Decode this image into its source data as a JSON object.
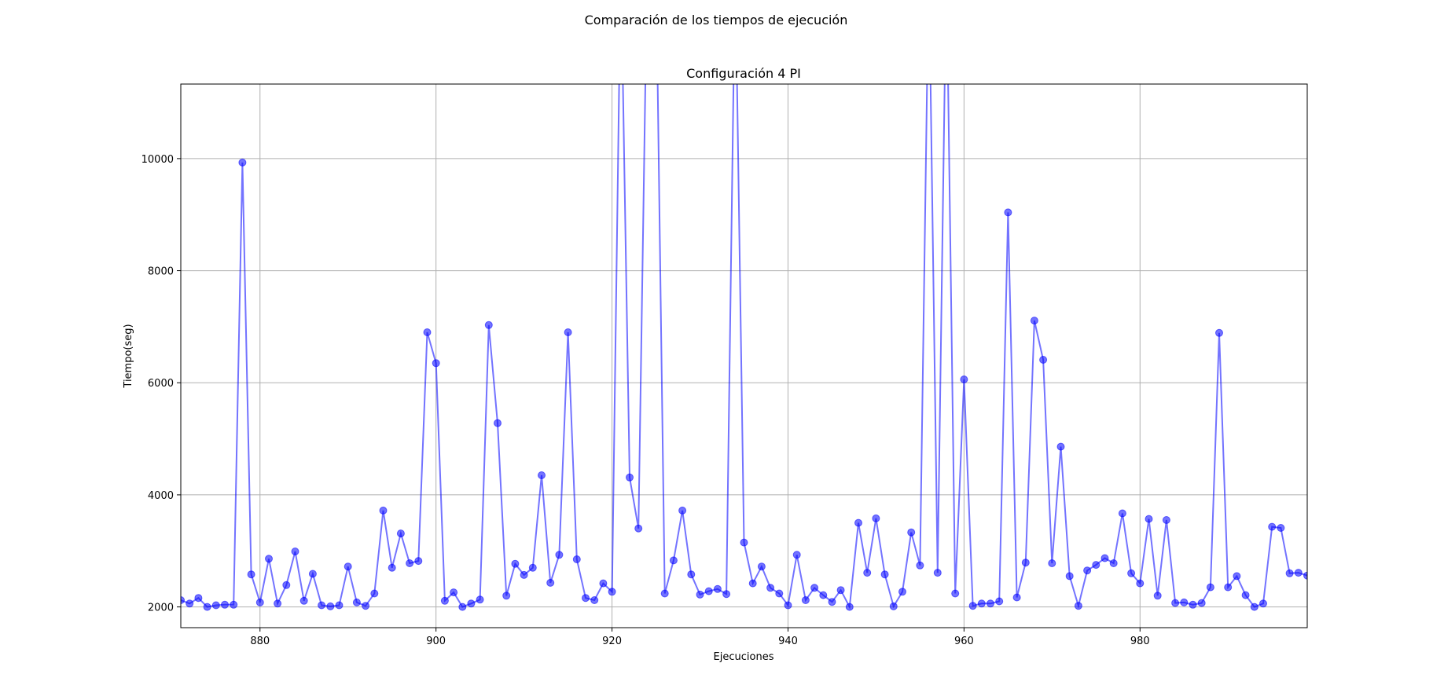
{
  "figure": {
    "suptitle": "Comparación de los tiempos de ejecución"
  },
  "chart_data": {
    "type": "line",
    "title": "Configuración 4 PI",
    "xlabel": "Ejecuciones",
    "ylabel": "Tiempo(seg)",
    "xlim": [
      871,
      999
    ],
    "ylim": [
      1630,
      11330
    ],
    "xticks": [
      880,
      900,
      920,
      940,
      960,
      980
    ],
    "yticks": [
      2000,
      4000,
      6000,
      8000,
      10000
    ],
    "grid": true,
    "legend": "none",
    "series": [
      {
        "color": "#0000ff",
        "alpha": 0.55,
        "marker": "circle",
        "x": [
          871,
          872,
          873,
          874,
          875,
          876,
          877,
          878,
          879,
          880,
          881,
          882,
          883,
          884,
          885,
          886,
          887,
          888,
          889,
          890,
          891,
          892,
          893,
          894,
          895,
          896,
          897,
          898,
          899,
          900,
          901,
          902,
          903,
          904,
          905,
          906,
          907,
          908,
          909,
          910,
          911,
          912,
          913,
          914,
          915,
          916,
          917,
          918,
          919,
          920,
          921,
          922,
          923,
          924,
          925,
          926,
          927,
          928,
          929,
          930,
          931,
          932,
          933,
          934,
          935,
          936,
          937,
          938,
          939,
          940,
          941,
          942,
          943,
          944,
          945,
          946,
          947,
          948,
          949,
          950,
          951,
          952,
          953,
          954,
          955,
          956,
          957,
          958,
          959,
          960,
          961,
          962,
          963,
          964,
          965,
          966,
          967,
          968,
          969,
          970,
          971,
          972,
          973,
          974,
          975,
          976,
          977,
          978,
          979,
          980,
          981,
          982,
          983,
          984,
          985,
          986,
          987,
          988,
          989,
          990,
          991,
          992,
          993,
          994,
          995,
          996,
          997,
          998,
          999
        ],
        "y": [
          2120,
          2060,
          2160,
          2000,
          2030,
          2040,
          2040,
          9930,
          2580,
          2080,
          2860,
          2060,
          2390,
          2990,
          2110,
          2590,
          2030,
          2010,
          2030,
          2720,
          2080,
          2020,
          2240,
          3720,
          2700,
          3310,
          2780,
          2820,
          6900,
          6350,
          2110,
          2260,
          2000,
          2060,
          2130,
          7030,
          5280,
          2200,
          2770,
          2570,
          2700,
          4350,
          2430,
          2930,
          6900,
          2850,
          2160,
          2120,
          2420,
          2270,
          13500,
          4310,
          3400,
          13500,
          13500,
          2240,
          2830,
          3720,
          2580,
          2220,
          2280,
          2320,
          2230,
          13500,
          3150,
          2420,
          2720,
          2340,
          2240,
          2030,
          2930,
          2120,
          2340,
          2210,
          2090,
          2300,
          2000,
          3500,
          2610,
          3580,
          2580,
          2010,
          2270,
          3330,
          2740,
          13500,
          2610,
          13500,
          2240,
          6060,
          2020,
          2060,
          2060,
          2100,
          9040,
          2170,
          2790,
          7110,
          6410,
          2780,
          4860,
          2550,
          2020,
          2650,
          2750,
          2870,
          2780,
          3670,
          2600,
          2420,
          3570,
          2200,
          3550,
          2070,
          2080,
          2040,
          2070,
          2350,
          6890,
          2350,
          2550,
          2210,
          2000,
          2060,
          3430,
          3410,
          2600,
          2610,
          2560
        ]
      }
    ]
  }
}
